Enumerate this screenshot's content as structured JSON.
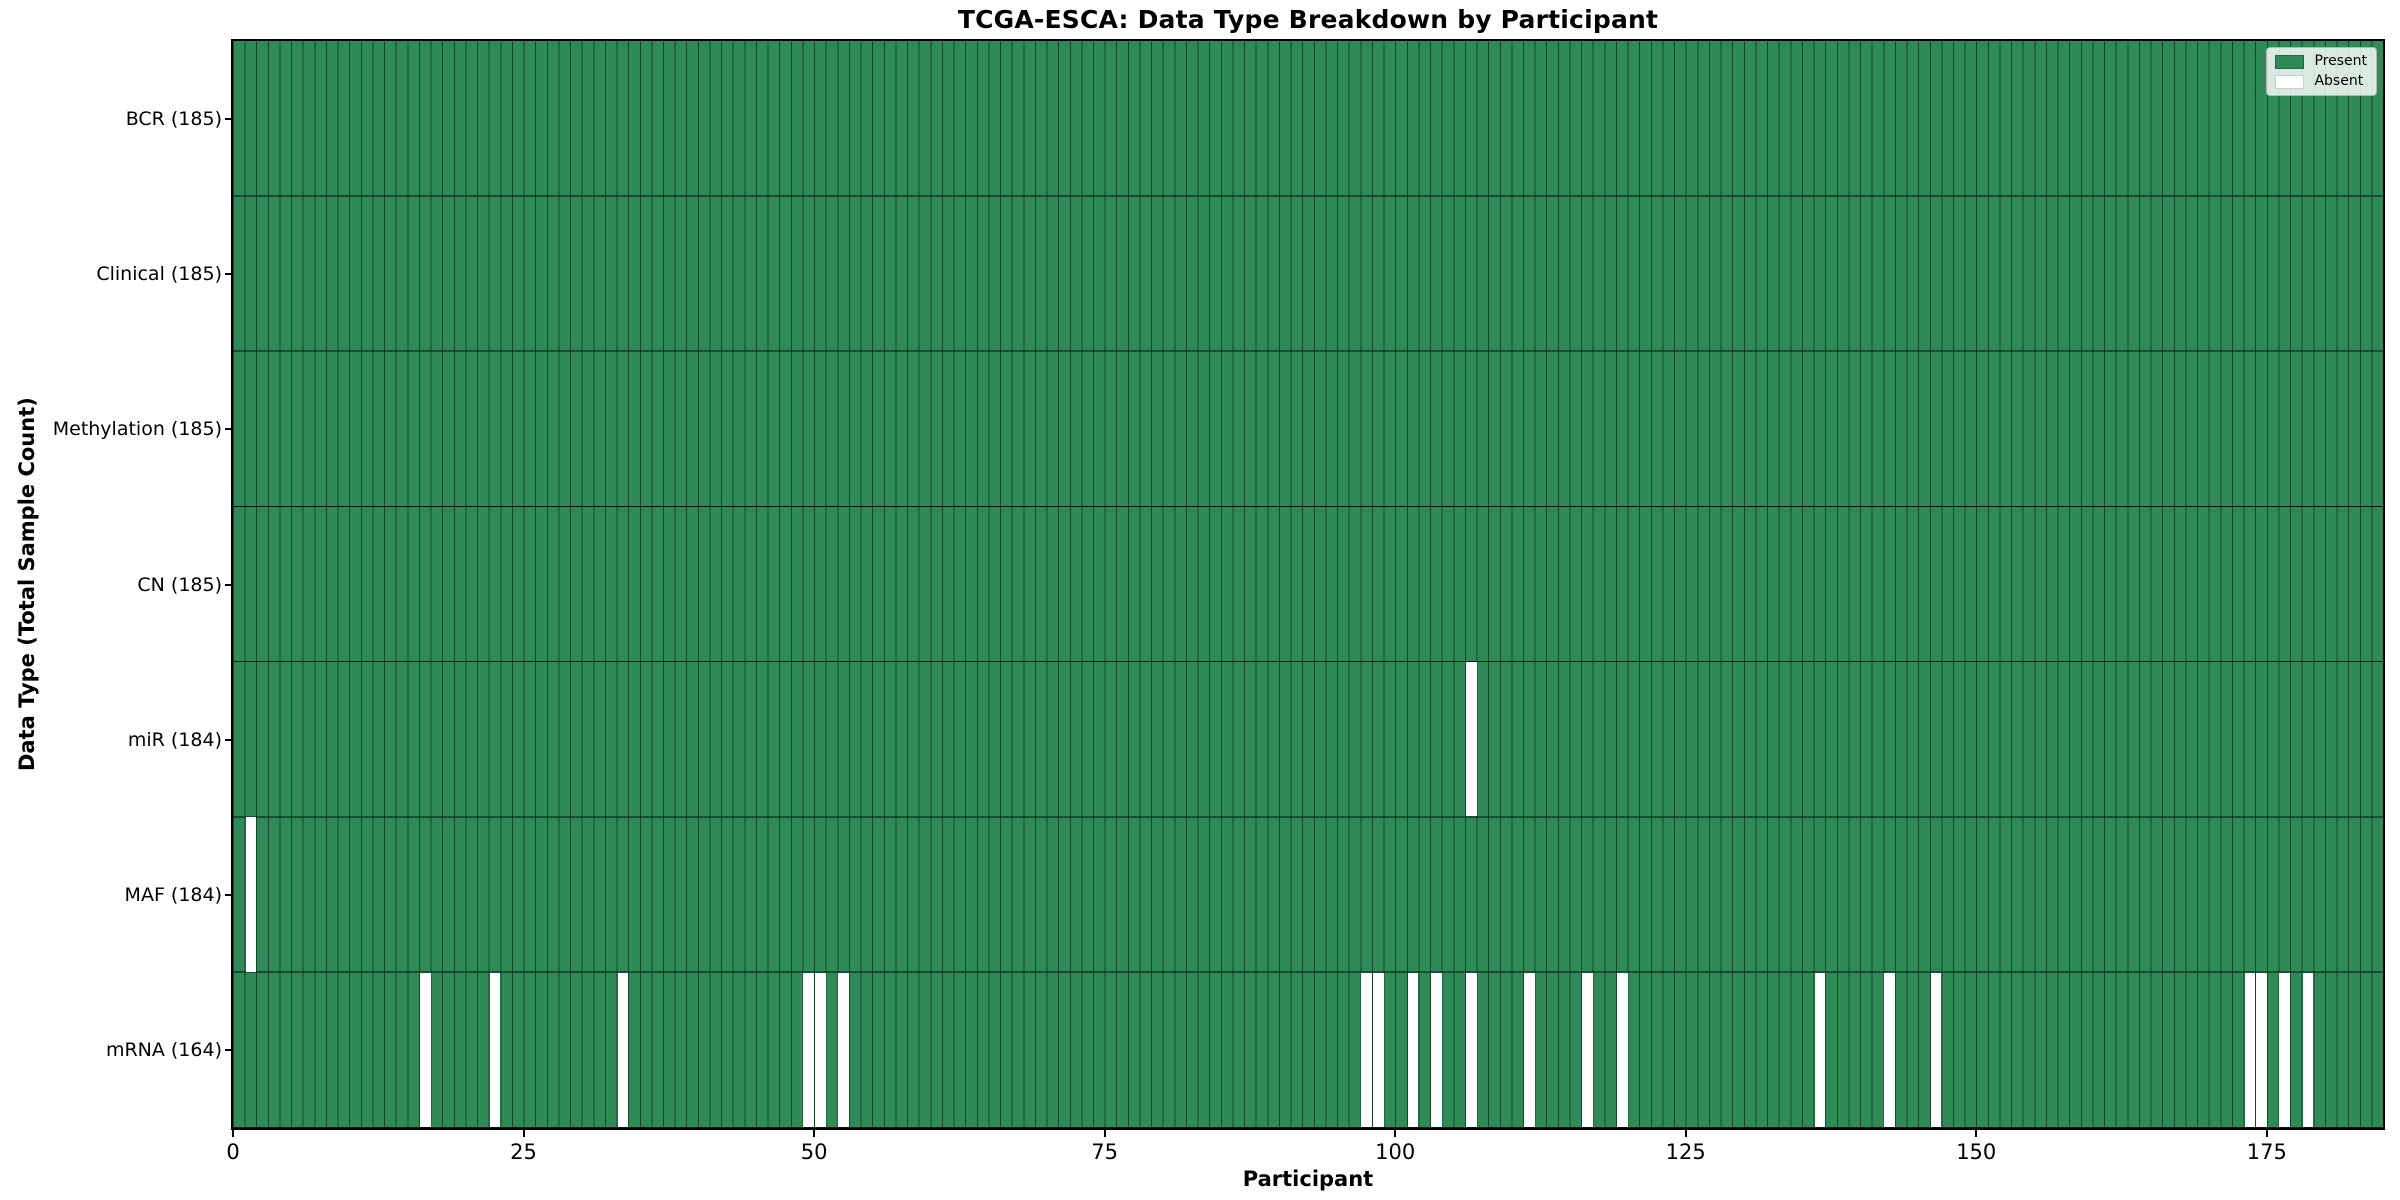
{
  "colors": {
    "present": "#2e8b57",
    "absent": "#ffffff",
    "grid_line": "rgba(0,0,0,0.5)",
    "row_separator": "#000000"
  },
  "chart_data": {
    "type": "heatmap",
    "title": "TCGA-ESCA: Data Type Breakdown by Participant",
    "xlabel": "Participant",
    "ylabel": "Data Type (Total Sample Count)",
    "legend": [
      "Present",
      "Absent"
    ],
    "legend_position": "upper right",
    "grid": true,
    "n_participants": 185,
    "x_range": [
      0,
      185
    ],
    "x_ticks": [
      0,
      25,
      50,
      75,
      100,
      125,
      150,
      175
    ],
    "cell_values": "1 = present (green), 0 = absent (white)",
    "rows": [
      {
        "label": "BCR (185)",
        "data_type": "BCR",
        "total": 185,
        "absent_participants": []
      },
      {
        "label": "Clinical (185)",
        "data_type": "Clinical",
        "total": 185,
        "absent_participants": []
      },
      {
        "label": "Methylation (185)",
        "data_type": "Methylation",
        "total": 185,
        "absent_participants": []
      },
      {
        "label": "CN (185)",
        "data_type": "CN",
        "total": 185,
        "absent_participants": []
      },
      {
        "label": "miR (184)",
        "data_type": "miR",
        "total": 184,
        "absent_participants": [
          106
        ]
      },
      {
        "label": "MAF (184)",
        "data_type": "MAF",
        "total": 184,
        "absent_participants": [
          1
        ]
      },
      {
        "label": "mRNA (164)",
        "data_type": "mRNA",
        "total": 164,
        "absent_participants": [
          16,
          22,
          33,
          49,
          50,
          52,
          97,
          98,
          101,
          103,
          106,
          111,
          116,
          119,
          136,
          142,
          146,
          173,
          174,
          176,
          178
        ]
      }
    ]
  }
}
